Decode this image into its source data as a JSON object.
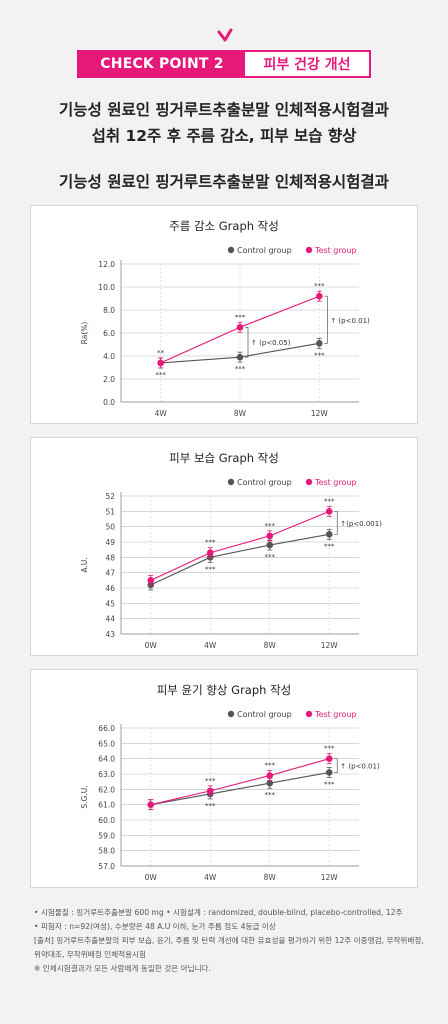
{
  "badge": {
    "left": "CHECK POINT 2",
    "right": "피부 건강 개선"
  },
  "headline": {
    "line1": "기능성 원료인 핑거루트추출분말 인체적용시험결과",
    "line2": "섭취 12주 후 주름 감소, 피부 보습 향상",
    "line3": "기능성 원료인 핑거루트추출분말 인체적용시험결과"
  },
  "colors": {
    "accent": "#e6187a",
    "control": "#555555",
    "test": "#e6187a"
  },
  "chart_data": [
    {
      "type": "line",
      "title": "주름 감소 Graph 작성",
      "ylabel": "Ra(%)",
      "xlabel": "",
      "categories": [
        "4W",
        "8W",
        "12W"
      ],
      "ylim": [
        0,
        12
      ],
      "yticks": [
        "0.0",
        "2.0",
        "4.0",
        "6.0",
        "8.0",
        "10.0",
        "12.0"
      ],
      "legend": [
        "Control group",
        "Test group"
      ],
      "legend_position": "top-right",
      "series": [
        {
          "name": "Control group",
          "values": [
            3.4,
            3.9,
            5.1
          ]
        },
        {
          "name": "Test group",
          "values": [
            3.4,
            6.5,
            9.2
          ]
        }
      ],
      "annotations": [
        {
          "at": "4W",
          "test": "**",
          "control": "***"
        },
        {
          "at": "8W",
          "test": "***",
          "control": "***"
        },
        {
          "at": "12W",
          "test": "***",
          "control": "***"
        }
      ],
      "pvalues": [
        "↑ (p<0.05)",
        "↑ (p<0.01)"
      ]
    },
    {
      "type": "line",
      "title": "피부 보습 Graph 작성",
      "ylabel": "A.U.",
      "xlabel": "",
      "categories": [
        "0W",
        "4W",
        "8W",
        "12W"
      ],
      "ylim": [
        43,
        52
      ],
      "yticks": [
        "43",
        "44",
        "45",
        "46",
        "47",
        "48",
        "49",
        "50",
        "51",
        "52"
      ],
      "legend": [
        "Control group",
        "Test group"
      ],
      "legend_position": "top-right",
      "series": [
        {
          "name": "Control group",
          "values": [
            46.2,
            48.0,
            48.8,
            49.5
          ]
        },
        {
          "name": "Test group",
          "values": [
            46.5,
            48.3,
            49.4,
            51.0
          ]
        }
      ],
      "annotations": [
        {
          "at": "4W",
          "test": "***",
          "control": "***"
        },
        {
          "at": "8W",
          "test": "***",
          "control": "***"
        },
        {
          "at": "12W",
          "test": "***",
          "control": "***"
        }
      ],
      "pvalues": [
        "↑(p<0.001)"
      ]
    },
    {
      "type": "line",
      "title": "피부 윤기 향상 Graph 작성",
      "ylabel": "S.G.U.",
      "xlabel": "",
      "categories": [
        "0W",
        "4W",
        "8W",
        "12W"
      ],
      "ylim": [
        57,
        66
      ],
      "yticks": [
        "57.0",
        "58.0",
        "59.0",
        "60.0",
        "61.0",
        "62.0",
        "63.0",
        "64.0",
        "65.0",
        "66.0"
      ],
      "legend": [
        "Control group",
        "Test group"
      ],
      "legend_position": "top-right",
      "series": [
        {
          "name": "Control group",
          "values": [
            61.0,
            61.7,
            62.4,
            63.1
          ]
        },
        {
          "name": "Test group",
          "values": [
            61.0,
            61.9,
            62.9,
            64.0
          ]
        }
      ],
      "annotations": [
        {
          "at": "4W",
          "test": "***",
          "control": "***"
        },
        {
          "at": "8W",
          "test": "***",
          "control": "***"
        },
        {
          "at": "12W",
          "test": "***",
          "control": "***"
        }
      ],
      "pvalues": [
        "↑ (p<0.01)"
      ]
    }
  ],
  "notes": [
    "• 시험물질 : 핑거루트추출분말 600 mg • 시험설계 : randomized, double-blind, placebo-controlled, 12주",
    "• 피험자 : n=92(여성), 수분량은 48 A.U 이하, 눈가 주름 정도 4등급 이상",
    "[출처] 핑거루트추출분말의 피부 보습, 윤기, 주름 및 탄력 개선에 대한 유효성을 평가하기 위한 12주 이중맹검, 무작위배정,",
    "위약대조, 무작위배정 인체적용시험",
    "※ 인체시험결과가 모든 사람에게 동일한 것은 아닙니다."
  ]
}
